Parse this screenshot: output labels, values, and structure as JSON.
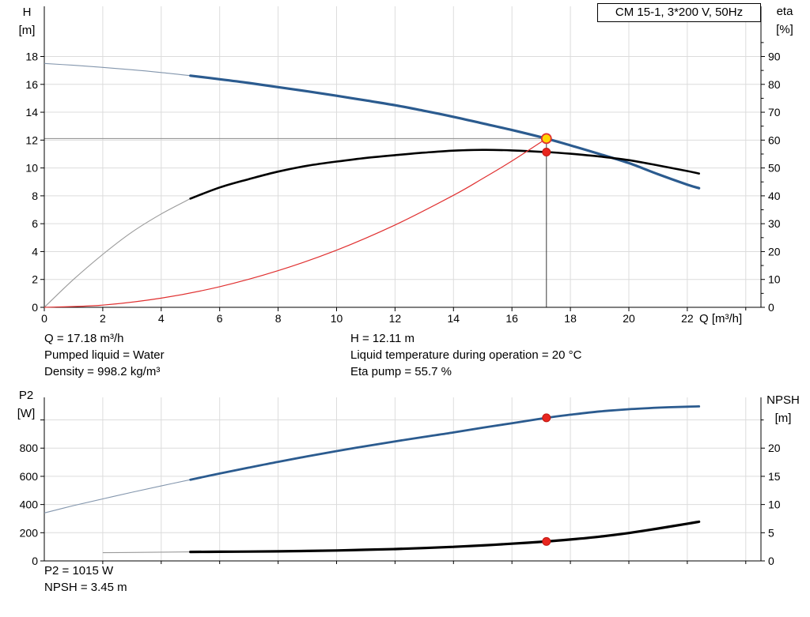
{
  "info": {
    "model_box": "CM 15-1, 3*200 V, 50Hz",
    "axis_titles": {
      "h1": "H",
      "h2": "[m]",
      "eta1": "eta",
      "eta2": "[%]",
      "q": "Q [m³/h]",
      "p21": "P2",
      "p22": "[W]",
      "npsh1": "NPSH",
      "npsh2": "[m]"
    },
    "rows_top": [
      {
        "left": "Q = 17.18 m³/h",
        "right": "H = 12.11 m"
      },
      {
        "left": "Pumped liquid = Water",
        "right": "Liquid temperature during operation = 20 °C"
      },
      {
        "left": "Density = 998.2 kg/m³",
        "right": "Eta pump = 55.7 %"
      }
    ],
    "rows_bottom": [
      "P2 = 1015 W",
      "NPSH = 3.45 m"
    ],
    "colors": {
      "curve_blue": "#2b5b8f",
      "curve_black": "#000000",
      "system_red": "#e03030",
      "duty_yellow": "#ffd400",
      "duty_red": "#e8261f",
      "grid": "#dcdcdc"
    }
  },
  "chart_data": [
    {
      "type": "line",
      "title": "head-efficiency-chart",
      "x": {
        "label": "Q [m³/h]",
        "min": 0,
        "max": 24.52,
        "tick_labels": [
          0,
          2,
          4,
          6,
          8,
          10,
          12,
          14,
          16,
          18,
          20,
          22
        ],
        "extra_ticks": [
          24
        ],
        "grid": [
          2,
          4,
          6,
          8,
          10,
          12,
          14,
          16,
          18,
          20,
          22,
          24
        ]
      },
      "left": {
        "label": "H [m]",
        "min": 0,
        "max": 21.6,
        "tick_labels": [
          0,
          2,
          4,
          6,
          8,
          10,
          12,
          14,
          16,
          18
        ],
        "grid": [
          2,
          4,
          6,
          8,
          10,
          12,
          14,
          16,
          18
        ]
      },
      "right": {
        "label": "eta [%]",
        "min": 0,
        "max": 108,
        "tick_labels": [
          0,
          10,
          20,
          30,
          40,
          50,
          60,
          70,
          80,
          90
        ],
        "minor_ticks": [
          5,
          15,
          25,
          35,
          45,
          55,
          65,
          75,
          85,
          95
        ]
      },
      "duty": {
        "q": 17.18,
        "h": 12.11
      },
      "series": [
        {
          "name": "head",
          "axis": "left",
          "color": "#2b5b8f",
          "thin_color": "#8396ad",
          "width": 3.2,
          "thin_until": 5,
          "points": [
            [
              0,
              17.5
            ],
            [
              1,
              17.37
            ],
            [
              2,
              17.22
            ],
            [
              3,
              17.05
            ],
            [
              4,
              16.85
            ],
            [
              5,
              16.62
            ],
            [
              6,
              16.37
            ],
            [
              7,
              16.1
            ],
            [
              8,
              15.8
            ],
            [
              9,
              15.5
            ],
            [
              10,
              15.18
            ],
            [
              11,
              14.85
            ],
            [
              12,
              14.5
            ],
            [
              13,
              14.1
            ],
            [
              14,
              13.67
            ],
            [
              15,
              13.2
            ],
            [
              16,
              12.72
            ],
            [
              17.18,
              12.11
            ],
            [
              18,
              11.62
            ],
            [
              19,
              11.0
            ],
            [
              20,
              10.35
            ],
            [
              21,
              9.55
            ],
            [
              22,
              8.8
            ],
            [
              22.4,
              8.55
            ]
          ]
        },
        {
          "name": "eta",
          "axis": "right",
          "color": "#000000",
          "thin_color": "#9a9a9a",
          "width": 2.6,
          "thin_until": 5,
          "points": [
            [
              0,
              0
            ],
            [
              1,
              10
            ],
            [
              2,
              19
            ],
            [
              3,
              27
            ],
            [
              4,
              33.5
            ],
            [
              5,
              39
            ],
            [
              6,
              43
            ],
            [
              7,
              46
            ],
            [
              8,
              48.7
            ],
            [
              9,
              50.8
            ],
            [
              10,
              52.3
            ],
            [
              11,
              53.6
            ],
            [
              12,
              54.6
            ],
            [
              13,
              55.5
            ],
            [
              14,
              56.2
            ],
            [
              15,
              56.5
            ],
            [
              16,
              56.3
            ],
            [
              17.18,
              55.7
            ],
            [
              18,
              55.1
            ],
            [
              19,
              54.1
            ],
            [
              20,
              52.8
            ],
            [
              21,
              50.9
            ],
            [
              22,
              48.9
            ],
            [
              22.4,
              48
            ]
          ]
        },
        {
          "name": "system",
          "axis": "left",
          "color": "#e03030",
          "thin_color": "#e03030",
          "width": 1.2,
          "points": [
            [
              0,
              0
            ],
            [
              2,
              0.16
            ],
            [
              4,
              0.66
            ],
            [
              6,
              1.48
            ],
            [
              8,
              2.63
            ],
            [
              10,
              4.1
            ],
            [
              12,
              5.91
            ],
            [
              14,
              8.04
            ],
            [
              15,
              9.24
            ],
            [
              16,
              10.5
            ],
            [
              17,
              11.86
            ],
            [
              17.18,
              12.11
            ]
          ]
        }
      ],
      "markers": [
        {
          "name": "duty-point-head",
          "x": 17.18,
          "value": 12.11,
          "axis": "left",
          "r": 6,
          "fill": "#ffd400",
          "stroke": "#e03030",
          "stroke_width": 1.8
        },
        {
          "name": "duty-point-eta",
          "x": 17.18,
          "value": 55.7,
          "axis": "right",
          "r": 5,
          "fill": "#e8261f",
          "stroke": "#c01812",
          "stroke_width": 1
        }
      ]
    },
    {
      "type": "line",
      "title": "power-npsh-chart",
      "x": {
        "label": "Q [m³/h]",
        "min": 0,
        "max": 24.52,
        "tick_labels": [],
        "extra_ticks": [
          2,
          4,
          6,
          8,
          10,
          12,
          14,
          16,
          18,
          20,
          22,
          24
        ],
        "grid": [
          2,
          4,
          6,
          8,
          10,
          12,
          14,
          16,
          18,
          20,
          22,
          24
        ]
      },
      "left": {
        "label": "P2 [W]",
        "min": 0,
        "max": 1160,
        "tick_labels": [
          0,
          200,
          400,
          600,
          800
        ],
        "extra_ticks": [
          1000
        ],
        "grid": [
          200,
          400,
          600,
          800,
          1000
        ]
      },
      "right": {
        "label": "NPSH [m]",
        "min": 0,
        "max": 29,
        "tick_labels": [
          0,
          5,
          10,
          15,
          20
        ],
        "minor_ticks": [
          25
        ]
      },
      "series": [
        {
          "name": "p2",
          "axis": "left",
          "color": "#2b5b8f",
          "thin_color": "#8396ad",
          "width": 2.8,
          "thin_until": 5,
          "points": [
            [
              0,
              340
            ],
            [
              1,
              392
            ],
            [
              2,
              440
            ],
            [
              3,
              487
            ],
            [
              4,
              532
            ],
            [
              5,
              576
            ],
            [
              6,
              620
            ],
            [
              7,
              662
            ],
            [
              8,
              703
            ],
            [
              9,
              742
            ],
            [
              10,
              779
            ],
            [
              11,
              814
            ],
            [
              12,
              848
            ],
            [
              13,
              880
            ],
            [
              14,
              911
            ],
            [
              15,
              945
            ],
            [
              16,
              977
            ],
            [
              17.18,
              1015
            ],
            [
              18,
              1037
            ],
            [
              19,
              1060
            ],
            [
              20,
              1076
            ],
            [
              21,
              1087
            ],
            [
              22,
              1094
            ],
            [
              22.4,
              1096
            ]
          ]
        },
        {
          "name": "npsh",
          "axis": "right",
          "color": "#000000",
          "thin_color": "#9a9a9a",
          "width": 3.2,
          "thin_until": 5,
          "points": [
            [
              2,
              1.45
            ],
            [
              3,
              1.5
            ],
            [
              4,
              1.55
            ],
            [
              5,
              1.6
            ],
            [
              6,
              1.62
            ],
            [
              7,
              1.66
            ],
            [
              8,
              1.7
            ],
            [
              9,
              1.76
            ],
            [
              10,
              1.85
            ],
            [
              11,
              1.97
            ],
            [
              12,
              2.1
            ],
            [
              13,
              2.28
            ],
            [
              14,
              2.5
            ],
            [
              15,
              2.75
            ],
            [
              16,
              3.05
            ],
            [
              17.18,
              3.45
            ],
            [
              18,
              3.8
            ],
            [
              19,
              4.3
            ],
            [
              20,
              4.95
            ],
            [
              21,
              5.75
            ],
            [
              22,
              6.6
            ],
            [
              22.4,
              6.95
            ]
          ]
        }
      ],
      "markers": [
        {
          "name": "duty-point-p2",
          "x": 17.18,
          "value": 1015,
          "axis": "left",
          "r": 5,
          "fill": "#e8261f",
          "stroke": "#c01812",
          "stroke_width": 1
        },
        {
          "name": "duty-point-npsh",
          "x": 17.18,
          "value": 3.45,
          "axis": "right",
          "r": 5,
          "fill": "#e8261f",
          "stroke": "#c01812",
          "stroke_width": 1
        }
      ]
    }
  ]
}
